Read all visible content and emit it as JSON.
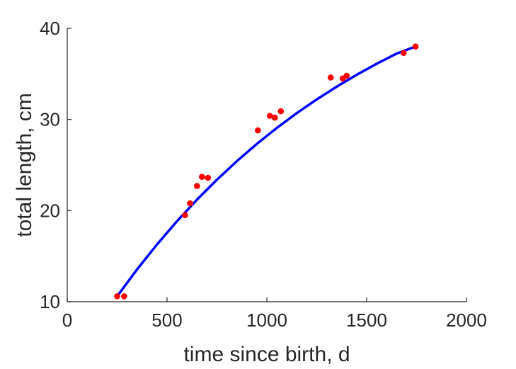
{
  "chart_data": {
    "type": "scatter",
    "title": "",
    "xlabel": "time since birth, d",
    "ylabel": "total length, cm",
    "xlim": [
      0,
      2000
    ],
    "ylim": [
      10,
      40
    ],
    "xticks": [
      0,
      500,
      1000,
      1500,
      2000
    ],
    "yticks": [
      10,
      20,
      30,
      40
    ],
    "xtick_labels": [
      "0",
      "500",
      "1000",
      "1500",
      "2000"
    ],
    "ytick_labels": [
      "10",
      "20",
      "30",
      "40"
    ],
    "grid": false,
    "legend": "none",
    "series": [
      {
        "kind": "points",
        "color": "#ff0000",
        "points": [
          {
            "x": 250,
            "y": 10.6
          },
          {
            "x": 285,
            "y": 10.6
          },
          {
            "x": 590,
            "y": 19.5
          },
          {
            "x": 615,
            "y": 20.8
          },
          {
            "x": 650,
            "y": 22.7
          },
          {
            "x": 675,
            "y": 23.7
          },
          {
            "x": 705,
            "y": 23.6
          },
          {
            "x": 955,
            "y": 28.8
          },
          {
            "x": 1015,
            "y": 30.4
          },
          {
            "x": 1040,
            "y": 30.2
          },
          {
            "x": 1070,
            "y": 30.9
          },
          {
            "x": 1320,
            "y": 34.6
          },
          {
            "x": 1380,
            "y": 34.5
          },
          {
            "x": 1400,
            "y": 34.8
          },
          {
            "x": 1685,
            "y": 37.3
          },
          {
            "x": 1745,
            "y": 38.0
          }
        ]
      },
      {
        "kind": "curve",
        "color": "#0000ff",
        "points": [
          {
            "x": 250,
            "y": 10.6
          },
          {
            "x": 350,
            "y": 13.55
          },
          {
            "x": 450,
            "y": 16.29
          },
          {
            "x": 550,
            "y": 18.84
          },
          {
            "x": 650,
            "y": 21.2
          },
          {
            "x": 750,
            "y": 23.39
          },
          {
            "x": 850,
            "y": 25.43
          },
          {
            "x": 950,
            "y": 27.32
          },
          {
            "x": 1050,
            "y": 29.07
          },
          {
            "x": 1150,
            "y": 30.7
          },
          {
            "x": 1250,
            "y": 32.2
          },
          {
            "x": 1350,
            "y": 33.6
          },
          {
            "x": 1450,
            "y": 34.9
          },
          {
            "x": 1550,
            "y": 36.11
          },
          {
            "x": 1650,
            "y": 37.23
          },
          {
            "x": 1745,
            "y": 38.0
          }
        ]
      }
    ]
  }
}
